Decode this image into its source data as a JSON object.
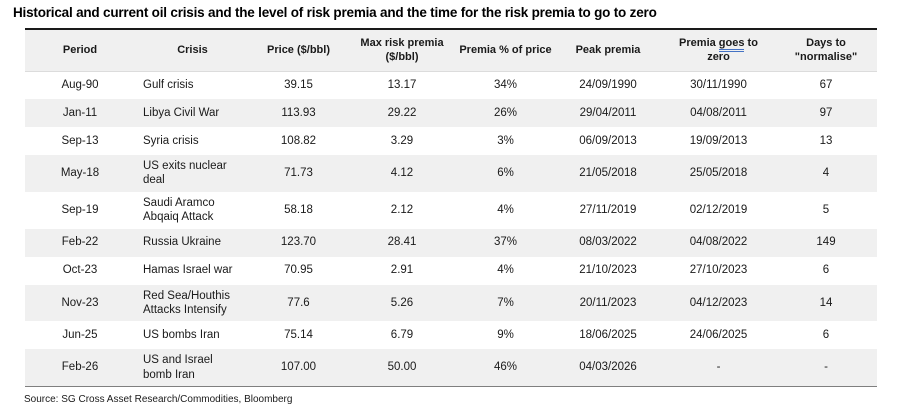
{
  "title": "Historical and current oil crisis and the level of risk premia and the time for the risk premia to go to zero",
  "source": "Source: SG Cross Asset Research/Commodities, Bloomberg",
  "colors": {
    "header_bg": "#f0f0f0",
    "row_alt_bg": "#f0f0f0",
    "top_border": "#1a1a1a",
    "bottom_border": "#7f7f7f",
    "grammar_underline": "#4472c4",
    "text": "#1a1a1a"
  },
  "table": {
    "headers": [
      {
        "segments": [
          {
            "text": "Period"
          }
        ]
      },
      {
        "segments": [
          {
            "text": "Crisis"
          }
        ]
      },
      {
        "segments": [
          {
            "text": "Price ($/bbl)"
          }
        ]
      },
      {
        "segments": [
          {
            "text": "Max risk premia\n($/bbl)"
          }
        ]
      },
      {
        "segments": [
          {
            "text": "Premia % of price"
          }
        ]
      },
      {
        "segments": [
          {
            "text": "Peak premia"
          }
        ]
      },
      {
        "segments": [
          {
            "text": "Premia "
          },
          {
            "text": "goes",
            "underline": true
          },
          {
            "text": " to\nzero"
          }
        ]
      },
      {
        "segments": [
          {
            "text": "Days to\n\"normalise\""
          }
        ]
      }
    ],
    "rows": [
      [
        "Aug-90",
        "Gulf crisis",
        "39.15",
        "13.17",
        "34%",
        "24/09/1990",
        "30/11/1990",
        "67"
      ],
      [
        "Jan-11",
        "Libya Civil War",
        "113.93",
        "29.22",
        "26%",
        "29/04/2011",
        "04/08/2011",
        "97"
      ],
      [
        "Sep-13",
        "Syria crisis",
        "108.82",
        "3.29",
        "3%",
        "06/09/2013",
        "19/09/2013",
        "13"
      ],
      [
        "May-18",
        "US exits nuclear\ndeal",
        "71.73",
        "4.12",
        "6%",
        "21/05/2018",
        "25/05/2018",
        "4"
      ],
      [
        "Sep-19",
        "Saudi Aramco\nAbqaiq Attack",
        "58.18",
        "2.12",
        "4%",
        "27/11/2019",
        "02/12/2019",
        "5"
      ],
      [
        "Feb-22",
        "Russia Ukraine",
        "123.70",
        "28.41",
        "37%",
        "08/03/2022",
        "04/08/2022",
        "149"
      ],
      [
        "Oct-23",
        "Hamas Israel war",
        "70.95",
        "2.91",
        "4%",
        "21/10/2023",
        "27/10/2023",
        "6"
      ],
      [
        "Nov-23",
        "Red Sea/Houthis\nAttacks Intensify",
        "77.6",
        "5.26",
        "7%",
        "20/11/2023",
        "04/12/2023",
        "14"
      ],
      [
        "Jun-25",
        "US bombs Iran",
        "75.14",
        "6.79",
        "9%",
        "18/06/2025",
        "24/06/2025",
        "6"
      ],
      [
        "Feb-26",
        "US and Israel\nbomb Iran",
        "107.00",
        "50.00",
        "46%",
        "04/03/2026",
        "-",
        "-"
      ]
    ]
  },
  "chart_data": {
    "type": "table",
    "title": "Historical and current oil crisis and the level of risk premia and the time for the risk premia to go to zero",
    "columns": [
      "Period",
      "Crisis",
      "Price ($/bbl)",
      "Max risk premia ($/bbl)",
      "Premia % of price",
      "Peak premia",
      "Premia goes to zero",
      "Days to \"normalise\""
    ],
    "rows": [
      [
        "Aug-90",
        "Gulf crisis",
        39.15,
        13.17,
        "34%",
        "24/09/1990",
        "30/11/1990",
        67
      ],
      [
        "Jan-11",
        "Libya Civil War",
        113.93,
        29.22,
        "26%",
        "29/04/2011",
        "04/08/2011",
        97
      ],
      [
        "Sep-13",
        "Syria crisis",
        108.82,
        3.29,
        "3%",
        "06/09/2013",
        "19/09/2013",
        13
      ],
      [
        "May-18",
        "US exits nuclear deal",
        71.73,
        4.12,
        "6%",
        "21/05/2018",
        "25/05/2018",
        4
      ],
      [
        "Sep-19",
        "Saudi Aramco Abqaiq Attack",
        58.18,
        2.12,
        "4%",
        "27/11/2019",
        "02/12/2019",
        5
      ],
      [
        "Feb-22",
        "Russia Ukraine",
        123.7,
        28.41,
        "37%",
        "08/03/2022",
        "04/08/2022",
        149
      ],
      [
        "Oct-23",
        "Hamas Israel war",
        70.95,
        2.91,
        "4%",
        "21/10/2023",
        "27/10/2023",
        6
      ],
      [
        "Nov-23",
        "Red Sea/Houthis Attacks Intensify",
        77.6,
        5.26,
        "7%",
        "20/11/2023",
        "04/12/2023",
        14
      ],
      [
        "Jun-25",
        "US bombs Iran",
        75.14,
        6.79,
        "9%",
        "18/06/2025",
        "24/06/2025",
        6
      ],
      [
        "Feb-26",
        "US and Israel bomb Iran",
        107.0,
        50.0,
        "46%",
        "04/03/2026",
        "-",
        "-"
      ]
    ],
    "source": "SG Cross Asset Research/Commodities, Bloomberg"
  }
}
